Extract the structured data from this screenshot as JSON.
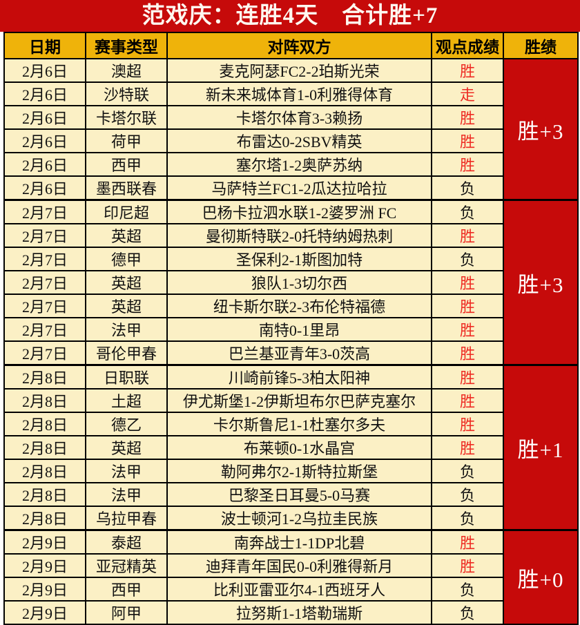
{
  "title": {
    "text": "范戏庆：连胜4天　合计胜+7"
  },
  "colors": {
    "banner_background": "#c60a0a",
    "header_background": "#efb30a",
    "row_background": "#fbf0c5",
    "win_text": "#ee2a22",
    "loss_text": "#111111",
    "streak_cell_background": "#c60a0a",
    "streak_cell_text": "#ffffff",
    "border": "#000000"
  },
  "table": {
    "headers": [
      "日期",
      "赛事类型",
      "对阵双方",
      "观点成绩",
      "胜绩"
    ],
    "groups": [
      {
        "summary": "胜+3",
        "rows": [
          {
            "date": "2月6日",
            "league": "澳超",
            "match": "麦克阿瑟FC2-2珀斯光荣",
            "result": "胜",
            "result_color": "red"
          },
          {
            "date": "2月6日",
            "league": "沙特联",
            "match": "新未来城体育1-0利雅得体育",
            "result": "走",
            "result_color": "red"
          },
          {
            "date": "2月6日",
            "league": "卡塔尔联",
            "match": "卡塔尔体育3-3赖扬",
            "result": "胜",
            "result_color": "red"
          },
          {
            "date": "2月6日",
            "league": "荷甲",
            "match": "布雷达0-2SBV精英",
            "result": "胜",
            "result_color": "red"
          },
          {
            "date": "2月6日",
            "league": "西甲",
            "match": "塞尔塔1-2奥萨苏纳",
            "result": "胜",
            "result_color": "red"
          },
          {
            "date": "2月6日",
            "league": "墨西联春",
            "match": "马萨特兰FC1-2瓜达拉哈拉",
            "result": "负",
            "result_color": "black"
          }
        ]
      },
      {
        "summary": "胜+3",
        "rows": [
          {
            "date": "2月7日",
            "league": "印尼超",
            "match": "巴杨卡拉泗水联1-2婆罗洲 FC",
            "result": "负",
            "result_color": "black"
          },
          {
            "date": "2月7日",
            "league": "英超",
            "match": "曼彻斯特联2-0托特纳姆热刺",
            "result": "胜",
            "result_color": "red"
          },
          {
            "date": "2月7日",
            "league": "德甲",
            "match": "圣保利2-1斯图加特",
            "result": "负",
            "result_color": "black"
          },
          {
            "date": "2月7日",
            "league": "英超",
            "match": "狼队1-3切尔西",
            "result": "胜",
            "result_color": "red"
          },
          {
            "date": "2月7日",
            "league": "英超",
            "match": "纽卡斯尔联2-3布伦特福德",
            "result": "胜",
            "result_color": "red"
          },
          {
            "date": "2月7日",
            "league": "法甲",
            "match": "南特0-1里昂",
            "result": "胜",
            "result_color": "red"
          },
          {
            "date": "2月7日",
            "league": "哥伦甲春",
            "match": "巴兰基亚青年3-0茨高",
            "result": "胜",
            "result_color": "red"
          }
        ]
      },
      {
        "summary": "胜+1",
        "rows": [
          {
            "date": "2月8日",
            "league": "日职联",
            "match": "川崎前锋5-3柏太阳神",
            "result": "胜",
            "result_color": "red"
          },
          {
            "date": "2月8日",
            "league": "土超",
            "match": "伊尤斯堡1-2伊斯坦布尔巴萨克塞尔",
            "result": "胜",
            "result_color": "red"
          },
          {
            "date": "2月8日",
            "league": "德乙",
            "match": "卡尔斯鲁尼1-1杜塞尔多夫",
            "result": "胜",
            "result_color": "red"
          },
          {
            "date": "2月8日",
            "league": "英超",
            "match": "布莱顿0-1水晶宫",
            "result": "胜",
            "result_color": "red"
          },
          {
            "date": "2月8日",
            "league": "法甲",
            "match": "勒阿弗尔2-1斯特拉斯堡",
            "result": "负",
            "result_color": "black"
          },
          {
            "date": "2月8日",
            "league": "法甲",
            "match": "巴黎圣日耳曼5-0马赛",
            "result": "负",
            "result_color": "black"
          },
          {
            "date": "2月8日",
            "league": "乌拉甲春",
            "match": "波士顿河1-2乌拉圭民族",
            "result": "负",
            "result_color": "black"
          }
        ]
      },
      {
        "summary": "胜+0",
        "rows": [
          {
            "date": "2月9日",
            "league": "泰超",
            "match": "南奔战士1-1DP北碧",
            "result": "胜",
            "result_color": "red"
          },
          {
            "date": "2月9日",
            "league": "亚冠精英",
            "match": "迪拜青年国民0-0利雅得新月",
            "result": "胜",
            "result_color": "red"
          },
          {
            "date": "2月9日",
            "league": "西甲",
            "match": "比利亚雷亚尔4-1西班牙人",
            "result": "负",
            "result_color": "black"
          },
          {
            "date": "2月9日",
            "league": "阿甲",
            "match": "拉努斯1-1塔勒瑞斯",
            "result": "负",
            "result_color": "black"
          }
        ]
      }
    ]
  }
}
